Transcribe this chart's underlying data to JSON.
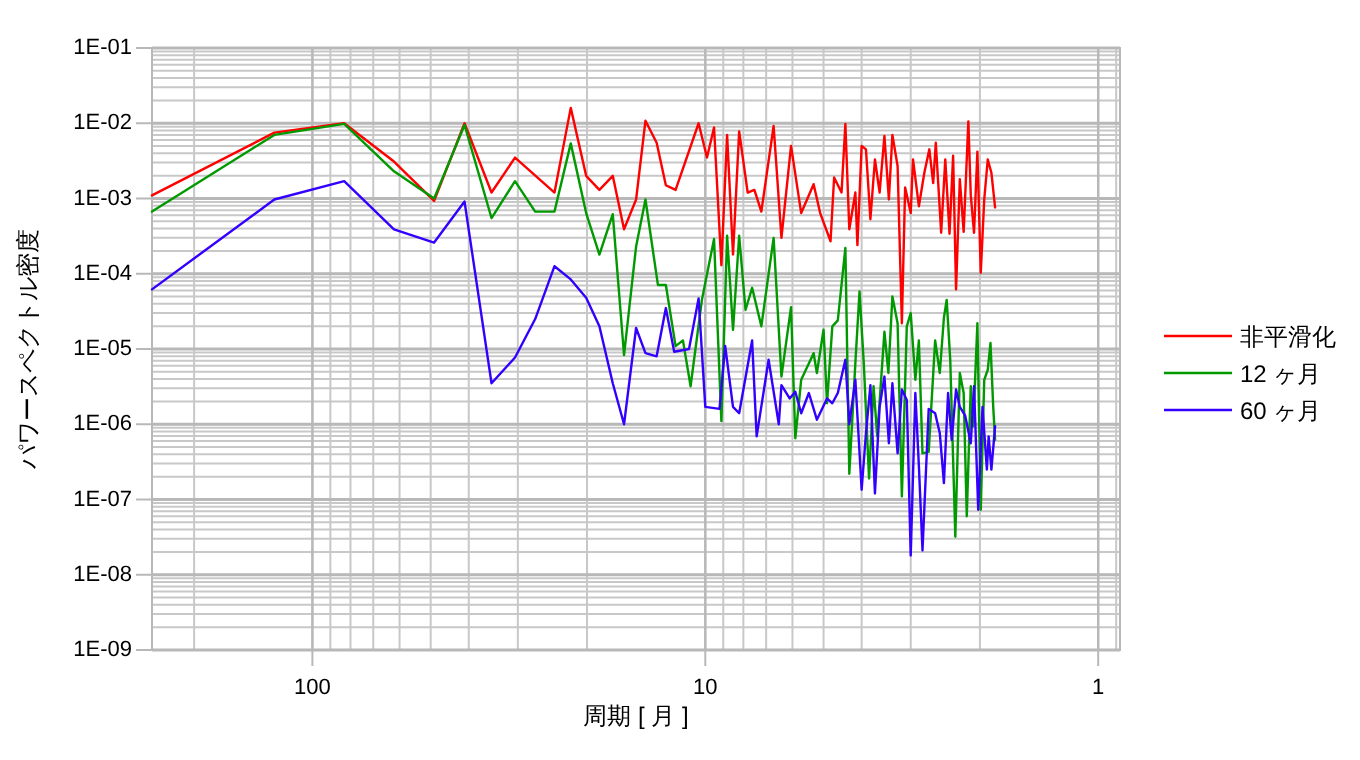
{
  "chart_data": {
    "type": "line",
    "xlabel": "周期 [ 月 ]",
    "ylabel": "パワースペクトル密度",
    "log": "xy",
    "xlim": [
      256,
      0.88
    ],
    "xticks": [
      100,
      10,
      1
    ],
    "ylim": [
      1e-09,
      0.1
    ],
    "yticks": [
      {
        "value": 1e-09,
        "label": "1E-09"
      },
      {
        "value": 1e-08,
        "label": "1E-08"
      },
      {
        "value": 1e-07,
        "label": "1E-07"
      },
      {
        "value": 1e-06,
        "label": "1E-06"
      },
      {
        "value": 1e-05,
        "label": "1E-05"
      },
      {
        "value": 0.0001,
        "label": "1E-04"
      },
      {
        "value": 0.001,
        "label": "1E-03"
      },
      {
        "value": 0.01,
        "label": "1E-02"
      },
      {
        "value": 0.1,
        "label": "1E-01"
      }
    ],
    "grid": true,
    "legend": "right",
    "line_style": "solid",
    "marker": "none",
    "series": [
      {
        "name": "非平滑化",
        "color": "#ff0000",
        "x": [
          256,
          125,
          83,
          62,
          49,
          41,
          35,
          30.5,
          24.2,
          22,
          20.1,
          18.6,
          17.2,
          16.1,
          15.0,
          14.2,
          13.3,
          12.6,
          11.9,
          10.4,
          9.9,
          9.5,
          9.1,
          8.8,
          8.5,
          8.2,
          7.8,
          7.5,
          7.2,
          6.7,
          6.4,
          6.05,
          5.7,
          5.3,
          5.1,
          4.8,
          4.7,
          4.5,
          4.4,
          4.3,
          4.15,
          4.1,
          4.0,
          3.9,
          3.8,
          3.7,
          3.6,
          3.5,
          3.41,
          3.34,
          3.24,
          3.16,
          3.1,
          3.0,
          2.96,
          2.86,
          2.77,
          2.69,
          2.63,
          2.59,
          2.51,
          2.45,
          2.39,
          2.34,
          2.3,
          2.25,
          2.2,
          2.14,
          2.11,
          2.07,
          2.03,
          1.99,
          1.95,
          1.91,
          1.87,
          1.83
        ],
        "values": [
          0.0011,
          0.0075,
          0.01,
          0.0031,
          0.00093,
          0.01,
          0.0012,
          0.0035,
          0.0012,
          0.016,
          0.002,
          0.0013,
          0.002,
          0.00039,
          0.00097,
          0.0108,
          0.0055,
          0.0015,
          0.0013,
          0.01,
          0.0035,
          0.0088,
          0.00013,
          0.007,
          0.00018,
          0.0078,
          0.0012,
          0.0013,
          0.00067,
          0.0092,
          0.0003,
          0.005,
          0.00064,
          0.00155,
          0.00064,
          0.00027,
          0.0019,
          0.0012,
          0.0098,
          0.00039,
          0.0012,
          0.00024,
          0.005,
          0.0045,
          0.00053,
          0.0033,
          0.0012,
          0.0068,
          0.00097,
          0.007,
          0.0027,
          2.2e-05,
          0.0014,
          0.00064,
          0.0033,
          0.00079,
          0.0022,
          0.0045,
          0.0016,
          0.0055,
          0.00035,
          0.0033,
          0.00034,
          0.0037,
          6.2e-05,
          0.0018,
          0.00036,
          0.0106,
          0.0011,
          0.00035,
          0.0042,
          0.000103,
          0.00097,
          0.0033,
          0.0022,
          0.00076
        ]
      },
      {
        "name": "12 ヶ月",
        "color": "#009900",
        "x": [
          256,
          125,
          83,
          62,
          49,
          41,
          35,
          30.5,
          27.1,
          24.2,
          22,
          20.1,
          18.6,
          17.2,
          16.1,
          15.0,
          14.2,
          13.2,
          12.6,
          11.9,
          11.4,
          10.9,
          10.2,
          9.5,
          9.1,
          8.8,
          8.5,
          8.2,
          7.9,
          7.6,
          7.2,
          6.7,
          6.4,
          6.05,
          5.9,
          5.7,
          5.3,
          5.2,
          5.0,
          4.9,
          4.75,
          4.6,
          4.4,
          4.3,
          4.15,
          4.05,
          3.95,
          3.83,
          3.73,
          3.65,
          3.5,
          3.42,
          3.34,
          3.24,
          3.16,
          3.07,
          3.0,
          2.92,
          2.86,
          2.8,
          2.7,
          2.6,
          2.53,
          2.47,
          2.43,
          2.38,
          2.31,
          2.25,
          2.2,
          2.16,
          2.11,
          2.08,
          2.03,
          1.99,
          1.95,
          1.91,
          1.88,
          1.85,
          1.83
        ],
        "values": [
          0.00067,
          0.007,
          0.0098,
          0.0023,
          0.001,
          0.0095,
          0.00055,
          0.0017,
          0.00067,
          0.00067,
          0.0054,
          0.00064,
          0.00018,
          0.00062,
          8.3e-06,
          0.00023,
          0.00097,
          7.1e-05,
          7.1e-05,
          1.09e-05,
          1.3e-05,
          3.2e-06,
          4.5e-05,
          0.00029,
          1.1e-06,
          0.00032,
          1.8e-05,
          0.00032,
          3.3e-05,
          6.5e-05,
          2e-05,
          0.0003,
          4.3e-06,
          3.6e-05,
          6.5e-07,
          3.9e-06,
          8.8e-06,
          4.8e-06,
          1.8e-05,
          1.9e-06,
          2e-05,
          2.4e-05,
          0.00022,
          2.2e-07,
          6.5e-06,
          5.8e-05,
          6.5e-06,
          1.9e-07,
          3.2e-06,
          6.9e-07,
          1.7e-05,
          4.8e-06,
          5e-05,
          2.2e-05,
          1.1e-07,
          2e-05,
          3e-05,
          3.9e-06,
          1.3e-05,
          4.1e-07,
          4.3e-07,
          1.3e-05,
          4.8e-06,
          2.6e-05,
          4.5e-05,
          7.2e-06,
          3.2e-08,
          4.8e-06,
          2.6e-06,
          6e-08,
          3.2e-06,
          9.4e-07,
          2.2e-05,
          7.3e-08,
          3.9e-06,
          5.3e-06,
          1.2e-05,
          1.7e-06,
          6.2e-07
        ]
      },
      {
        "name": "60 ヶ月",
        "color": "#3300ff",
        "x": [
          256,
          125,
          83,
          62,
          49,
          41,
          35,
          30.5,
          27.1,
          24.2,
          22,
          20.1,
          18.6,
          17.2,
          16.1,
          15.0,
          14.2,
          13.3,
          12.6,
          12.0,
          11.0,
          10.4,
          10.0,
          9.2,
          8.9,
          8.5,
          8.2,
          7.6,
          7.4,
          6.9,
          6.5,
          6.4,
          6.1,
          5.9,
          5.7,
          5.45,
          5.2,
          4.9,
          4.75,
          4.6,
          4.4,
          4.3,
          4.15,
          4.0,
          3.9,
          3.8,
          3.7,
          3.6,
          3.5,
          3.41,
          3.34,
          3.24,
          3.16,
          3.07,
          3.0,
          2.92,
          2.86,
          2.8,
          2.7,
          2.6,
          2.53,
          2.47,
          2.41,
          2.36,
          2.3,
          2.25,
          2.18,
          2.11,
          2.07,
          2.02,
          1.97,
          1.92,
          1.9,
          1.87,
          1.83
        ],
        "values": [
          6.2e-05,
          0.00097,
          0.0017,
          0.00039,
          0.00026,
          0.00091,
          3.5e-06,
          7.7e-06,
          2.5e-05,
          0.000126,
          8.4e-05,
          4.8e-05,
          2e-05,
          3.5e-06,
          1e-06,
          1.9e-05,
          8.8e-06,
          8e-06,
          3.5e-05,
          9.2e-06,
          1e-05,
          4.7e-05,
          1.7e-06,
          1.6e-06,
          1.1e-05,
          1.7e-06,
          1.4e-06,
          1.3e-05,
          6.9e-07,
          7.2e-06,
          1e-06,
          3.3e-06,
          2.2e-06,
          2.7e-06,
          1.4e-06,
          2.6e-06,
          1.15e-06,
          2.2e-06,
          1.9e-06,
          2.6e-06,
          7.2e-06,
          1e-06,
          3.9e-06,
          1.35e-07,
          7.6e-07,
          3.3e-06,
          1.2e-07,
          1.7e-06,
          4.3e-06,
          5.6e-07,
          3.5e-06,
          4.1e-07,
          2.9e-06,
          2.1e-06,
          1.8e-08,
          2.6e-06,
          2.8e-07,
          2.1e-08,
          1.6e-06,
          1.4e-06,
          7.6e-07,
          1.65e-07,
          2.6e-06,
          6.2e-07,
          2.9e-06,
          1.7e-06,
          1.3e-06,
          5.6e-07,
          3.2e-06,
          7.3e-08,
          1.7e-06,
          2.5e-07,
          6.9e-07,
          2.5e-07,
          9.4e-07
        ]
      }
    ]
  }
}
